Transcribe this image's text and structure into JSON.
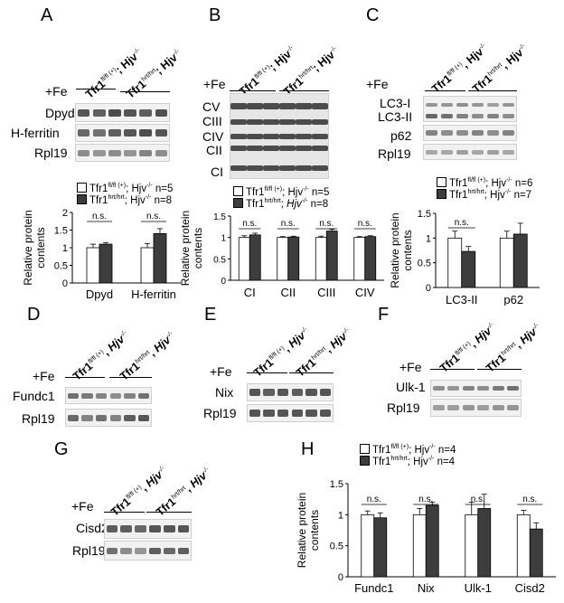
{
  "panels": {
    "A": "A",
    "B": "B",
    "C": "C",
    "D": "D",
    "E": "E",
    "F": "F",
    "G": "G",
    "H": "H"
  },
  "fe": "+Fe",
  "geno": {
    "ctrl_base": "Tfr1",
    "ctrl_sup": "fl/fl (+)",
    "hrt_base": "Tfr1",
    "hrt_sup": "hrt/hrt",
    "sep": "; ",
    "sep2": ", ",
    "hjv": "Hjv",
    "hjv_sup": "-/-"
  },
  "blots": {
    "A": [
      "Dpyd",
      "H-ferritin",
      "Rpl19"
    ],
    "B": [
      "CV",
      "CIII",
      "CIV",
      "CII",
      "CI"
    ],
    "C": [
      "LC3-I",
      "LC3-II",
      "p62",
      "Rpl19"
    ],
    "D": [
      "Fundc1",
      "Rpl19"
    ],
    "E": [
      "Nix",
      "Rpl19"
    ],
    "F": [
      "Ulk-1",
      "Rpl19"
    ],
    "G": [
      "Cisd2",
      "Rpl19"
    ]
  },
  "legends": {
    "A": {
      "ctrl": "Tfr1fl/fl (+); Hjv-/- n=5",
      "hrt": "Tfr1hrt/hrt; Hjv-/- n=8",
      "n_ctrl": "n=5",
      "n_hrt": "n=8"
    },
    "B": {
      "n_ctrl": "n=5",
      "n_hrt": "n=8"
    },
    "C": {
      "n_ctrl": "n=6",
      "n_hrt": "n=7"
    },
    "H": {
      "n_ctrl": "n=4",
      "n_hrt": "n=4"
    }
  },
  "ylabel_line1": "Relative protein",
  "ylabel_line2": "contents",
  "ns": "n.s.",
  "colors": {
    "ctrl": "#ffffff",
    "hrt": "#3d3d3d"
  },
  "chart_data": [
    {
      "id": "A",
      "type": "bar",
      "categories": [
        "Dpyd",
        "H-ferritin"
      ],
      "ylim": [
        0,
        2
      ],
      "yticks": [
        "0",
        "0.5",
        "1",
        "1.5",
        "2"
      ],
      "series": [
        {
          "name": "Tfr1 fl/fl (+); Hjv-/-",
          "values": [
            1.0,
            1.0
          ],
          "err": [
            0.1,
            0.12
          ]
        },
        {
          "name": "Tfr1 hrt/hrt; Hjv-/-",
          "values": [
            1.1,
            1.4
          ],
          "err": [
            0.04,
            0.14
          ]
        }
      ],
      "annotations": [
        "n.s.",
        "n.s."
      ]
    },
    {
      "id": "B",
      "type": "bar",
      "categories": [
        "CI",
        "CII",
        "CIII",
        "CIV"
      ],
      "ylim": [
        0,
        1.5
      ],
      "yticks": [
        "0",
        "0.5",
        "1",
        "1.5"
      ],
      "series": [
        {
          "name": "Tfr1 fl/fl (+); Hjv-/-",
          "values": [
            1.0,
            1.0,
            1.0,
            1.0
          ],
          "err": [
            0.04,
            0.02,
            0.03,
            0.02
          ]
        },
        {
          "name": "Tfr1 hrt/hrt; Hjv-/-",
          "values": [
            1.06,
            1.01,
            1.15,
            1.02
          ],
          "err": [
            0.04,
            0.02,
            0.04,
            0.02
          ]
        }
      ],
      "annotations": [
        "n.s.",
        "n.s.",
        "n.s.",
        "n.s."
      ]
    },
    {
      "id": "C",
      "type": "bar",
      "categories": [
        "LC3-II",
        "p62"
      ],
      "ylim": [
        0,
        1.5
      ],
      "yticks": [
        "0",
        "0.5",
        "1",
        "1.5"
      ],
      "series": [
        {
          "name": "Tfr1 fl/fl (+); Hjv-/-",
          "values": [
            1.0,
            1.0
          ],
          "err": [
            0.14,
            0.14
          ]
        },
        {
          "name": "Tfr1 hrt/hrt; Hjv-/-",
          "values": [
            0.73,
            1.08
          ],
          "err": [
            0.1,
            0.22
          ]
        }
      ],
      "annotations": [
        "n.s."
      ]
    },
    {
      "id": "H",
      "type": "bar",
      "categories": [
        "Fundc1",
        "Nix",
        "Ulk-1",
        "Cisd2"
      ],
      "ylim": [
        0,
        1.5
      ],
      "yticks": [
        "0",
        "0.5",
        "1",
        "1.5"
      ],
      "series": [
        {
          "name": "Tfr1 fl/fl (+); Hjv-/-",
          "values": [
            1.0,
            1.0,
            1.0,
            1.0
          ],
          "err": [
            0.06,
            0.1,
            0.2,
            0.07
          ]
        },
        {
          "name": "Tfr1 hrt/hrt; Hjv-/-",
          "values": [
            0.95,
            1.15,
            1.1,
            0.77
          ],
          "err": [
            0.08,
            0.05,
            0.23,
            0.1
          ]
        }
      ],
      "annotations": [
        "n.s.",
        "n.s.",
        "n.s.",
        "n.s."
      ]
    }
  ]
}
